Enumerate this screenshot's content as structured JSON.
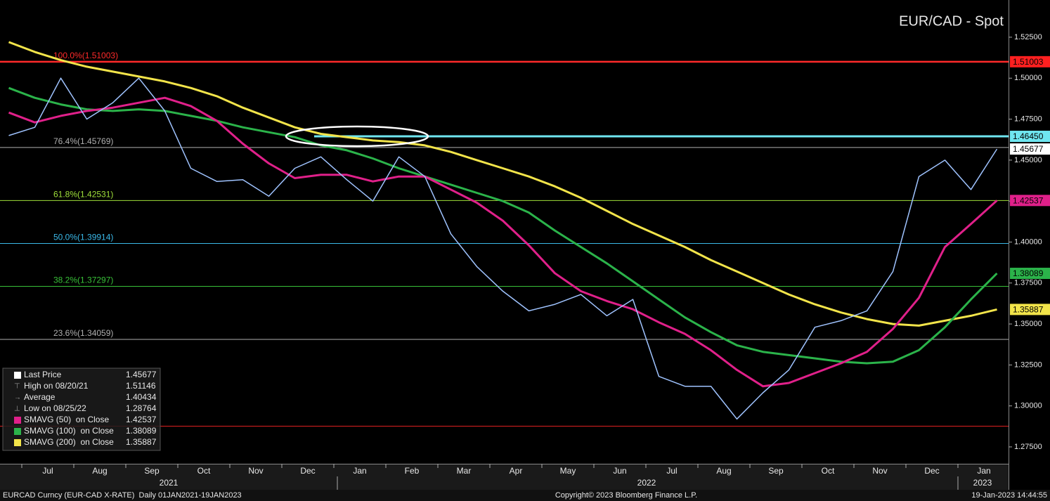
{
  "chart_data": {
    "type": "line",
    "title": "EUR/CAD - Spot",
    "categories": [
      null,
      "Jul",
      null,
      "Aug",
      null,
      "Sep",
      null,
      "Oct",
      null,
      "Nov",
      null,
      "Dec",
      null,
      "Jan",
      null,
      "Feb",
      null,
      "Mar",
      null,
      "Apr",
      null,
      "May",
      null,
      "Jun",
      null,
      "Jul",
      null,
      "Aug",
      null,
      "Sep",
      null,
      "Oct",
      null,
      "Nov",
      null,
      "Dec",
      null,
      "Jan",
      null
    ],
    "years": [
      "2021",
      "2022",
      "2023"
    ],
    "ylim": [
      1.2647,
      1.5477
    ],
    "yticks": [
      {
        "value": 1.275,
        "label": "1.27500"
      },
      {
        "value": 1.3,
        "label": "1.30000"
      },
      {
        "value": 1.325,
        "label": "1.32500"
      },
      {
        "value": 1.35,
        "label": "1.35000"
      },
      {
        "value": 1.375,
        "label": "1.37500"
      },
      {
        "value": 1.4,
        "label": "1.40000"
      },
      {
        "value": 1.425,
        "label": "1.42500"
      },
      {
        "value": 1.45,
        "label": "1.45000"
      },
      {
        "value": 1.475,
        "label": "1.47500"
      },
      {
        "value": 1.5,
        "label": "1.50000"
      },
      {
        "value": 1.525,
        "label": "1.52500"
      }
    ],
    "series": [
      {
        "name": "Last Price",
        "color": "#9fc3ff",
        "legend_value": 1.45677,
        "values": [
          1.465,
          1.47,
          1.5,
          1.475,
          1.485,
          1.5,
          1.48,
          1.445,
          1.437,
          1.438,
          1.428,
          1.445,
          1.452,
          1.438,
          1.425,
          1.452,
          1.44,
          1.405,
          1.385,
          1.37,
          1.358,
          1.362,
          1.368,
          1.355,
          1.365,
          1.318,
          1.312,
          1.312,
          1.292,
          1.308,
          1.322,
          1.348,
          1.352,
          1.358,
          1.382,
          1.44,
          1.45,
          1.432,
          1.45677
        ]
      },
      {
        "name": "SMAVG (50)  on Close",
        "color": "#e0208a",
        "legend_value": 1.42537,
        "values": [
          1.479,
          1.473,
          1.477,
          1.48,
          1.482,
          1.485,
          1.488,
          1.483,
          1.474,
          1.46,
          1.448,
          1.439,
          1.441,
          1.441,
          1.437,
          1.44,
          1.44,
          1.432,
          1.424,
          1.413,
          1.398,
          1.381,
          1.37,
          1.364,
          1.359,
          1.351,
          1.344,
          1.334,
          1.322,
          1.312,
          1.314,
          1.32,
          1.326,
          1.333,
          1.347,
          1.366,
          1.397,
          1.411,
          1.42537
        ]
      },
      {
        "name": "SMAVG (100)  on Close",
        "color": "#2bb34a",
        "legend_value": 1.38089,
        "values": [
          1.494,
          1.488,
          1.484,
          1.481,
          1.48,
          1.481,
          1.48,
          1.477,
          1.474,
          1.47,
          1.467,
          1.464,
          1.459,
          1.456,
          1.451,
          1.445,
          1.44,
          1.435,
          1.43,
          1.425,
          1.418,
          1.407,
          1.397,
          1.387,
          1.376,
          1.365,
          1.354,
          1.345,
          1.337,
          1.333,
          1.331,
          1.329,
          1.327,
          1.326,
          1.327,
          1.334,
          1.348,
          1.365,
          1.38089
        ]
      },
      {
        "name": "SMAVG (200)  on Close",
        "color": "#f2e44a",
        "legend_value": 1.35887,
        "values": [
          1.522,
          1.516,
          1.511,
          1.507,
          1.504,
          1.501,
          1.498,
          1.494,
          1.489,
          1.482,
          1.476,
          1.47,
          1.466,
          1.464,
          1.462,
          1.461,
          1.459,
          1.455,
          1.45,
          1.445,
          1.44,
          1.434,
          1.427,
          1.419,
          1.411,
          1.404,
          1.397,
          1.389,
          1.382,
          1.375,
          1.368,
          1.362,
          1.357,
          1.353,
          1.35,
          1.349,
          1.352,
          1.355,
          1.35887
        ]
      }
    ],
    "legend_stats": [
      {
        "name": "High on 08/20/21",
        "value": 1.51146
      },
      {
        "name": "Average",
        "value": 1.40434
      },
      {
        "name": "Low on 08/25/22",
        "value": 1.28764
      }
    ],
    "levels": [
      {
        "label": "100.0%(1.51003)",
        "value": 1.51003,
        "color": "#ff2a2a"
      },
      {
        "label": "76.4%(1.45769)",
        "value": 1.45769,
        "color": "#b0b0b0"
      },
      {
        "label": "61.8%(1.42531)",
        "value": 1.42531,
        "color": "#9fe03a"
      },
      {
        "label": "50.0%(1.39914)",
        "value": 1.39914,
        "color": "#3ab8e8"
      },
      {
        "label": "38.2%(1.37297)",
        "value": 1.37297,
        "color": "#38c038"
      },
      {
        "label": "23.6%(1.34059)",
        "value": 1.34059,
        "color": "#b0b0b0"
      }
    ],
    "resistance": {
      "value": 1.4645,
      "color": "#6fe6f0"
    },
    "tags": [
      {
        "value": 1.51003,
        "label": "1.51003",
        "color": "#ff2020"
      },
      {
        "value": 1.4645,
        "label": "1.46450",
        "color": "#6fe6f0"
      },
      {
        "value": 1.45677,
        "label": "1.45677",
        "color": "#ffffff"
      },
      {
        "value": 1.42537,
        "label": "1.42537",
        "color": "#e0208a"
      },
      {
        "value": 1.38089,
        "label": "1.38089",
        "color": "#2bb34a"
      },
      {
        "value": 1.35887,
        "label": "1.35887",
        "color": "#f2e44a"
      }
    ],
    "footer": {
      "left": "EURCAD Curncy (EUR-CAD X-RATE)  Daily 01JAN2021-19JAN2023",
      "center": "Copyright© 2023 Bloomberg Finance L.P.",
      "right": "19-Jan-2023 14:44:55"
    }
  }
}
